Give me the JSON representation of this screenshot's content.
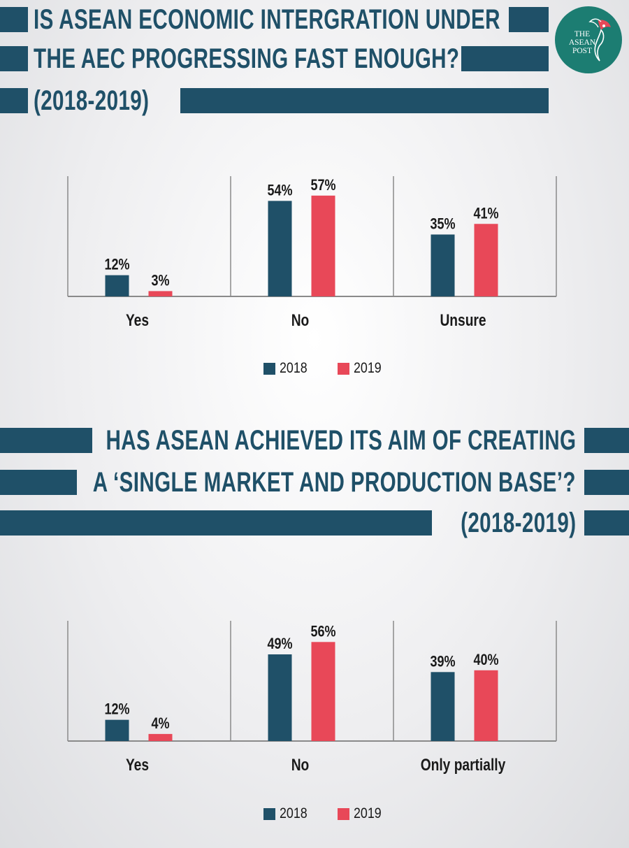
{
  "logo": {
    "lines": [
      "THE",
      "ASEAN",
      "POST"
    ],
    "color": "#1c7d72"
  },
  "colors": {
    "series_2018": "#1f5068",
    "series_2019": "#e84858",
    "title": "#1f5068",
    "axis": "#8a8a8a"
  },
  "chart1": {
    "title_lines": [
      "IS ASEAN ECONOMIC INTERGRATION UNDER",
      "THE AEC PROGRESSING FAST ENOUGH?",
      "(2018-2019)"
    ]
  },
  "chart2": {
    "title_lines": [
      "HAS ASEAN ACHIEVED ITS AIM OF CREATING",
      "A ‘SINGLE MARKET AND PRODUCTION BASE’?",
      "(2018-2019)"
    ]
  },
  "chart_data": [
    {
      "type": "bar",
      "title": "IS ASEAN ECONOMIC INTERGRATION UNDER THE AEC PROGRESSING FAST ENOUGH? (2018-2019)",
      "categories": [
        "Yes",
        "No",
        "Unsure"
      ],
      "series": [
        {
          "name": "2018",
          "values": [
            12,
            54,
            35
          ],
          "labels": [
            "12%",
            "54%",
            "35%"
          ],
          "color": "#1f5068"
        },
        {
          "name": "2019",
          "values": [
            3,
            57,
            41
          ],
          "labels": [
            "3%",
            "57%",
            "41%"
          ],
          "color": "#e84858"
        }
      ],
      "ylim": [
        0,
        65
      ],
      "legend_position": "bottom",
      "grid": false
    },
    {
      "type": "bar",
      "title": "HAS ASEAN ACHIEVED ITS AIM OF CREATING A ‘SINGLE MARKET AND PRODUCTION BASE’? (2018-2019)",
      "categories": [
        "Yes",
        "No",
        "Only partially"
      ],
      "series": [
        {
          "name": "2018",
          "values": [
            12,
            49,
            39
          ],
          "labels": [
            "12%",
            "49%",
            "39%"
          ],
          "color": "#1f5068"
        },
        {
          "name": "2019",
          "values": [
            4,
            56,
            40
          ],
          "labels": [
            "4%",
            "56%",
            "40%"
          ],
          "color": "#e84858"
        }
      ],
      "ylim": [
        0,
        65
      ],
      "legend_position": "bottom",
      "grid": false
    }
  ]
}
